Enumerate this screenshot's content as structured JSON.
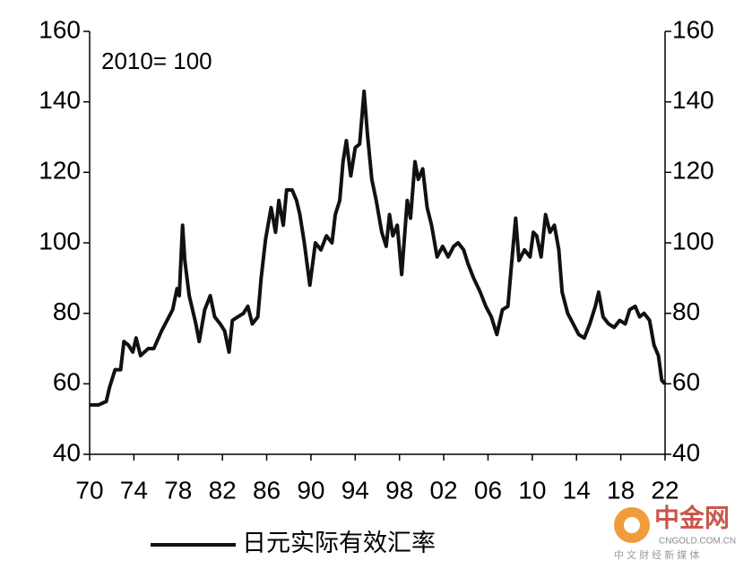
{
  "chart_data": {
    "type": "line",
    "annotations": [
      "2010= 100"
    ],
    "x": [
      1970,
      1970.8,
      1971.5,
      1971.8,
      1972.3,
      1972.8,
      1973.1,
      1973.5,
      1973.9,
      1974.2,
      1974.6,
      1975.3,
      1975.8,
      1976.5,
      1977,
      1977.5,
      1977.9,
      1978.1,
      1978.4,
      1978.6,
      1979,
      1979.6,
      1979.9,
      1980.4,
      1980.9,
      1981.3,
      1981.8,
      1982.2,
      1982.6,
      1982.9,
      1983.4,
      1983.9,
      1984.3,
      1984.7,
      1985.2,
      1985.5,
      1985.9,
      1986.4,
      1986.8,
      1987.1,
      1987.5,
      1987.8,
      1988.3,
      1988.7,
      1989,
      1989.4,
      1989.9,
      1990.4,
      1990.9,
      1991.4,
      1991.9,
      1992.2,
      1992.6,
      1992.9,
      1993.2,
      1993.6,
      1994,
      1994.4,
      1994.8,
      1995.1,
      1995.5,
      1995.9,
      1996.4,
      1996.8,
      1997.1,
      1997.4,
      1997.8,
      1998.2,
      1998.7,
      1999,
      1999.4,
      1999.7,
      2000.1,
      2000.5,
      2000.9,
      2001.4,
      2001.9,
      2002.4,
      2002.9,
      2003.3,
      2003.8,
      2004.2,
      2004.7,
      2005.3,
      2005.8,
      2006.3,
      2006.8,
      2007.3,
      2007.8,
      2008.1,
      2008.5,
      2008.8,
      2009.3,
      2009.8,
      2010.1,
      2010.4,
      2010.8,
      2011.2,
      2011.6,
      2012,
      2012.4,
      2012.7,
      2013.2,
      2013.7,
      2014.2,
      2014.7,
      2015.2,
      2015.7,
      2016,
      2016.4,
      2016.9,
      2017.4,
      2017.9,
      2018.4,
      2018.8,
      2019.3,
      2019.7,
      2020.1,
      2020.6,
      2021,
      2021.4,
      2021.7,
      2022
    ],
    "series": [
      {
        "name": "日元实际有效汇率",
        "color": "#111111",
        "values": [
          54,
          54,
          55,
          59,
          64,
          64,
          72,
          71,
          69,
          73,
          68,
          70,
          70,
          75,
          78,
          81,
          87,
          85,
          105,
          95,
          85,
          77,
          72,
          81,
          85,
          79,
          77,
          75,
          69,
          78,
          79,
          80,
          82,
          77,
          79,
          90,
          101,
          110,
          103,
          112,
          105,
          115,
          115,
          112,
          108,
          100,
          88,
          100,
          98,
          102,
          100,
          108,
          112,
          123,
          129,
          119,
          127,
          128,
          143,
          131,
          118,
          112,
          103,
          99,
          108,
          102,
          105,
          91,
          112,
          107,
          123,
          118,
          121,
          110,
          105,
          96,
          99,
          96,
          99,
          100,
          98,
          94,
          90,
          86,
          82,
          79,
          74,
          81,
          82,
          93,
          107,
          95,
          98,
          96,
          103,
          102,
          96,
          108,
          103,
          105,
          98,
          86,
          80,
          77,
          74,
          73,
          77,
          82,
          86,
          79,
          77,
          76,
          78,
          77,
          81,
          82,
          79,
          80,
          78,
          71,
          68,
          61,
          60
        ]
      }
    ],
    "xlim": [
      1970,
      2022
    ],
    "xticks": [
      {
        "value": 1970,
        "label": "70"
      },
      {
        "value": 1974,
        "label": "74"
      },
      {
        "value": 1978,
        "label": "78"
      },
      {
        "value": 1982,
        "label": "82"
      },
      {
        "value": 1986,
        "label": "86"
      },
      {
        "value": 1990,
        "label": "90"
      },
      {
        "value": 1994,
        "label": "94"
      },
      {
        "value": 1998,
        "label": "98"
      },
      {
        "value": 2002,
        "label": "02"
      },
      {
        "value": 2006,
        "label": "06"
      },
      {
        "value": 2010,
        "label": "10"
      },
      {
        "value": 2014,
        "label": "14"
      },
      {
        "value": 2018,
        "label": "18"
      },
      {
        "value": 2022,
        "label": "22"
      }
    ],
    "ylim": [
      40,
      160
    ],
    "yticks": [
      40,
      60,
      80,
      100,
      120,
      140,
      160
    ],
    "y2lim": [
      40,
      160
    ],
    "y2ticks": [
      40,
      60,
      80,
      100,
      120,
      140,
      160
    ],
    "legend": "bottom",
    "watermark": {
      "title": "中金网",
      "subtitle": "CNGOLD.COM.CN",
      "tagline": "中 文 财 经 新 媒 体"
    }
  }
}
